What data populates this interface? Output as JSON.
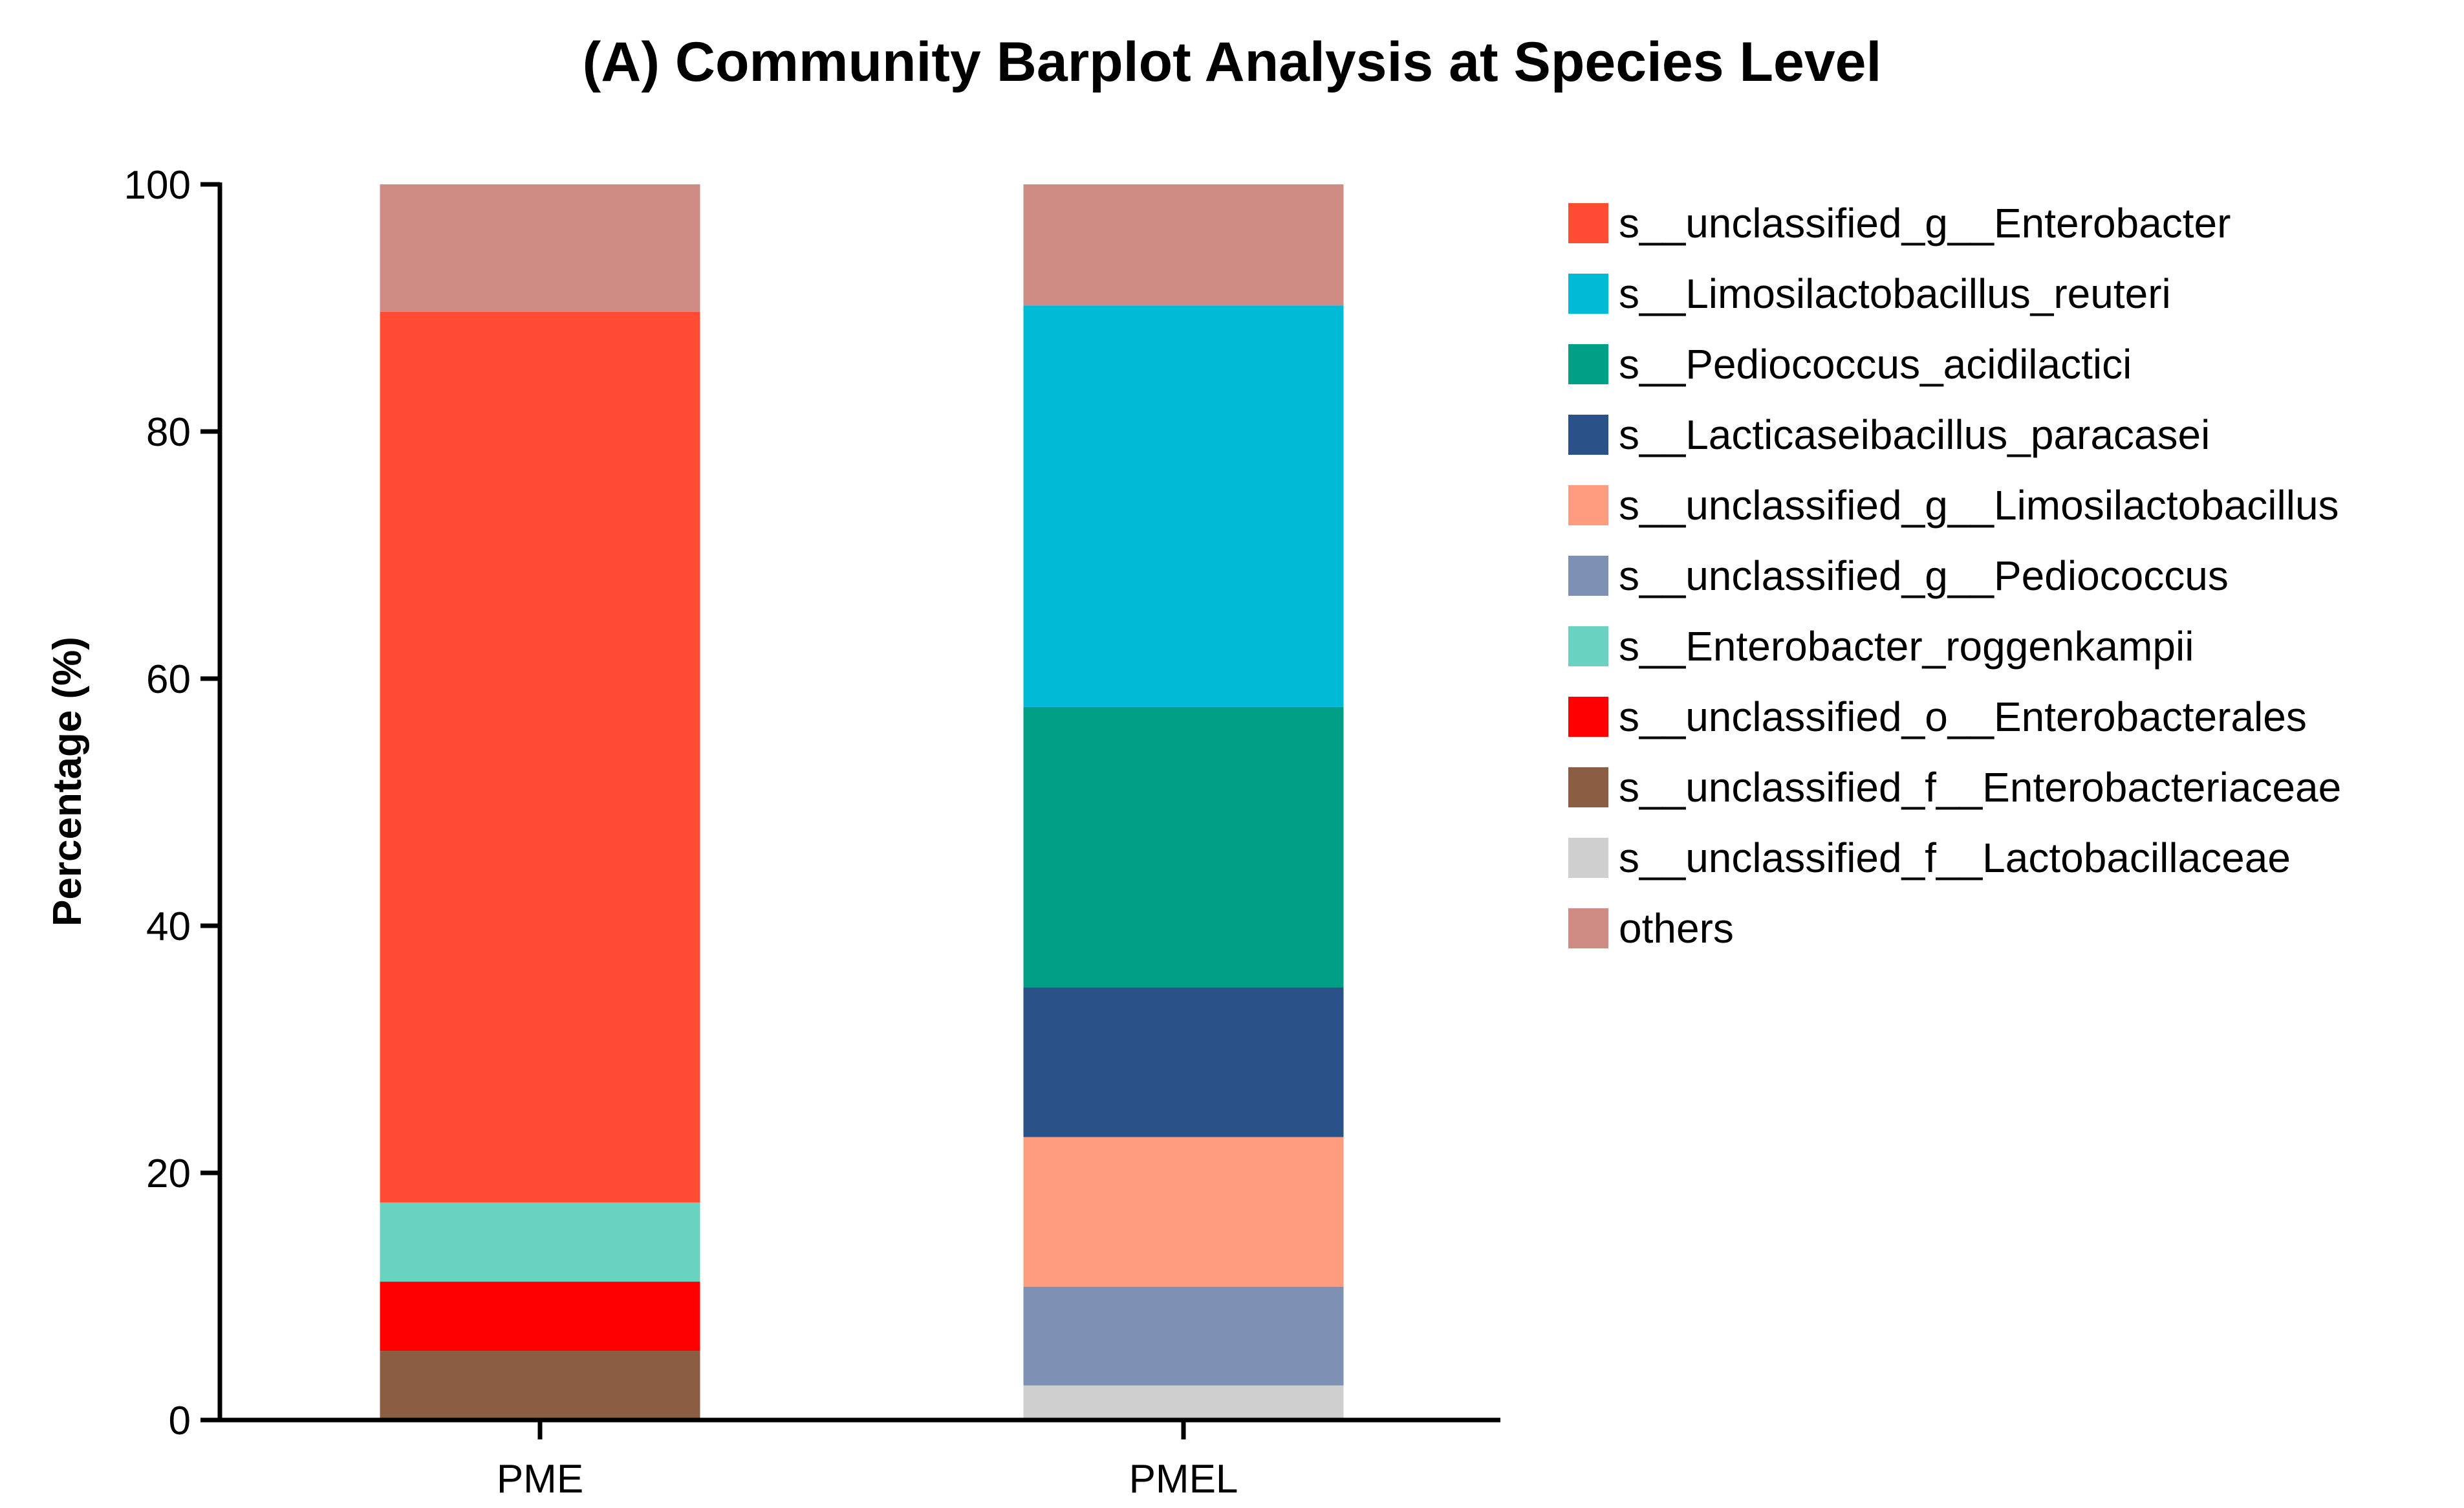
{
  "chart_data": {
    "type": "bar",
    "stacked": true,
    "title": "(A) Community Barplot Analysis at Species Level",
    "xlabel": "",
    "ylabel": "Percentage (%)",
    "ylim": [
      0,
      100
    ],
    "yticks": [
      0,
      20,
      40,
      60,
      80,
      100
    ],
    "categories": [
      "PME",
      "PMEL"
    ],
    "series": [
      {
        "name": "s__unclassified_g__Enterobacter",
        "color": "#FF4C33",
        "values": [
          72.1,
          0
        ]
      },
      {
        "name": "s__Limosilactobacillus_reuteri",
        "color": "#00BAD6",
        "values": [
          0,
          32.5
        ]
      },
      {
        "name": "s__Pediococcus_acidilactici",
        "color": "#00A087",
        "values": [
          0,
          22.7
        ]
      },
      {
        "name": "s__Lacticaseibacillus_paracasei",
        "color": "#2A5288",
        "values": [
          0,
          12.1
        ]
      },
      {
        "name": "s__unclassified_g__Limosilactobacillus",
        "color": "#FF9C80",
        "values": [
          0,
          12.1
        ]
      },
      {
        "name": "s__unclassified_g__Pediococcus",
        "color": "#7F90B5",
        "values": [
          0,
          8.0
        ]
      },
      {
        "name": "s__Enterobacter_roggenkampii",
        "color": "#6AD2C1",
        "values": [
          6.4,
          0
        ]
      },
      {
        "name": "s__unclassified_o__Enterobacterales",
        "color": "#FF0000",
        "values": [
          5.6,
          0
        ]
      },
      {
        "name": "s__unclassified_f__Enterobacteriaceae",
        "color": "#8B5E44",
        "values": [
          5.6,
          0
        ]
      },
      {
        "name": "s__unclassified_f__Lactobacillaceae",
        "color": "#CFCFCF",
        "values": [
          0,
          2.8
        ]
      },
      {
        "name": "others",
        "color": "#CE8C84",
        "values": [
          10.3,
          9.8
        ]
      }
    ],
    "stack_order": [
      "s__unclassified_f__Enterobacteriaceae",
      "s__unclassified_f__Lactobacillaceae",
      "s__unclassified_o__Enterobacterales",
      "s__unclassified_g__Pediococcus",
      "s__Enterobacter_roggenkampii",
      "s__unclassified_g__Limosilactobacillus",
      "s__Lacticaseibacillus_paracasei",
      "s__Pediococcus_acidilactici",
      "s__unclassified_g__Enterobacter",
      "s__Limosilactobacillus_reuteri",
      "others"
    ],
    "legend_position": "right"
  }
}
